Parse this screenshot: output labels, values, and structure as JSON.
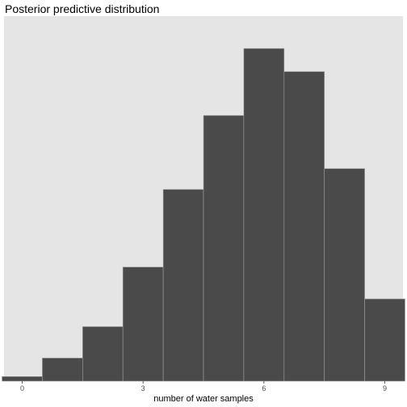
{
  "chart_data": {
    "type": "bar",
    "title": "Posterior predictive distribution",
    "xlabel": "number of water samples",
    "ylabel": "",
    "x": [
      0,
      1,
      2,
      3,
      4,
      5,
      6,
      7,
      8,
      9
    ],
    "values": [
      0.01,
      0.05,
      0.118,
      0.247,
      0.415,
      0.575,
      0.72,
      0.67,
      0.46,
      0.178
    ],
    "xticks": [
      0,
      3,
      6,
      9
    ],
    "xlim": [
      -0.45,
      9.45
    ],
    "ylim": [
      0,
      0.79
    ],
    "show_y_axis": false,
    "grid": false,
    "colors": {
      "panel": "#e5e5e5",
      "bar_fill": "#4a4a4a",
      "bar_outline": "#a0a0a0"
    }
  }
}
